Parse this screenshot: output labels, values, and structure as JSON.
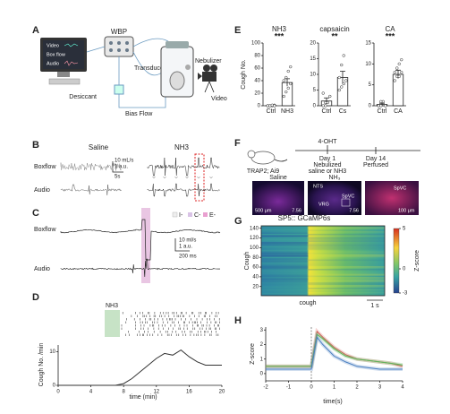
{
  "panel_labels": [
    "A",
    "B",
    "C",
    "D",
    "E",
    "F",
    "G",
    "H"
  ],
  "schematic": {
    "monitor_labels": [
      "Video",
      "Box flow",
      "Audio"
    ],
    "wbp": "WBP",
    "desiccant": "Desiccant",
    "transducer": "Transducer",
    "bias_flow": "Bias Flow",
    "nebulizer": "Nebulizer",
    "camera": "Video"
  },
  "traces_B": {
    "conditions": [
      "Saline",
      "NH3"
    ],
    "rows": [
      "Boxflow",
      "Audio"
    ],
    "scale": [
      "10 mL/s",
      "1 a.u.",
      "5s"
    ]
  },
  "traces_C": {
    "legend": [
      "I-",
      "C-",
      "E-"
    ],
    "rows": [
      "Boxflow",
      "Audio"
    ],
    "scale": [
      "10 ml/s",
      "1 a.u.",
      "200 ms"
    ]
  },
  "histology": {
    "mouse": "TRAP2; Ai9",
    "drug": "4-OHT",
    "day1": "Day 1",
    "day1_text": [
      "Nebulized",
      "saline or NH3"
    ],
    "day14": "Day 14",
    "day14_text": "Perfused",
    "images": [
      {
        "title": "Saline",
        "scale": "500 μm",
        "number": "7.56"
      },
      {
        "title": "NH₃",
        "regions": [
          "NTS",
          "SpVC",
          "VRG"
        ],
        "number": "7.56"
      },
      {
        "regions": [
          "SpVC"
        ],
        "scale": "100 μm"
      }
    ]
  },
  "chart_data": [
    {
      "type": "line",
      "annotation": "NH3",
      "x": [
        0,
        2,
        4,
        6,
        7,
        8,
        9,
        10,
        11,
        12,
        13,
        14,
        15,
        16,
        17,
        18,
        19,
        20
      ],
      "values": [
        0,
        0,
        0,
        0,
        0,
        0.5,
        2,
        4,
        6,
        8,
        9.5,
        9,
        10.5,
        8.5,
        7,
        6,
        6,
        6
      ],
      "color": "#333333",
      "xlim": [
        0,
        20
      ],
      "xticks": [
        0,
        4,
        8,
        12,
        16,
        20
      ],
      "ylim": [
        0,
        12
      ],
      "yticks": [
        0,
        10
      ],
      "xlabel": "time (min)",
      "ylabel": "Cough No. /min"
    },
    {
      "type": "bar",
      "title": "NH3",
      "annotation": "***",
      "categories": [
        "Ctrl",
        "NH3"
      ],
      "values": [
        0.3,
        37
      ],
      "errors": [
        0.3,
        6
      ],
      "points": [
        [
          0,
          0,
          0,
          1,
          0,
          0,
          1,
          0
        ],
        [
          15,
          22,
          28,
          35,
          40,
          45,
          55,
          62
        ]
      ],
      "ylim": [
        0,
        100
      ],
      "yticks": [
        0,
        20,
        40,
        60,
        80,
        100
      ],
      "ylabel": "Cough No.",
      "color": "#ffffff"
    },
    {
      "type": "bar",
      "title": "capsaicin",
      "annotation": "**",
      "categories": [
        "Ctrl",
        "Cs"
      ],
      "values": [
        1.5,
        9
      ],
      "errors": [
        1,
        2
      ],
      "points": [
        [
          0,
          0,
          1,
          3,
          4,
          1
        ],
        [
          5,
          6,
          7,
          8,
          9,
          13,
          16
        ]
      ],
      "ylim": [
        0,
        20
      ],
      "yticks": [
        0,
        5,
        10,
        15,
        20
      ],
      "color": "#ffffff"
    },
    {
      "type": "bar",
      "title": "CA",
      "annotation": "***",
      "categories": [
        "Ctrl",
        "CA"
      ],
      "values": [
        0.3,
        7.5
      ],
      "errors": [
        0.3,
        1
      ],
      "points": [
        [
          0,
          0,
          1,
          0,
          0,
          1
        ],
        [
          6,
          7,
          7,
          8,
          8,
          9,
          10,
          11
        ]
      ],
      "ylim": [
        0,
        15
      ],
      "yticks": [
        0,
        5,
        10,
        15
      ],
      "color": "#ffffff"
    },
    {
      "type": "heatmap",
      "title": "SP5:: GCaMP6s",
      "ylabel": "Cough",
      "xlabel": "cough",
      "scale": "1 s",
      "ylim": [
        1,
        145
      ],
      "yticks": [
        20,
        40,
        60,
        80,
        100,
        120,
        140
      ],
      "colorbar": {
        "lim": [
          -3,
          5
        ],
        "ticks": [
          5,
          0,
          -3
        ],
        "label": "Z-score"
      }
    },
    {
      "type": "line",
      "x": [
        -2,
        -1.5,
        -1,
        -0.5,
        0,
        0.1,
        0.25,
        0.5,
        1,
        1.5,
        2,
        2.5,
        3,
        3.5,
        4
      ],
      "series": [
        {
          "color": "#d9534f",
          "values": [
            0.5,
            0.5,
            0.5,
            0.5,
            0.5,
            1.5,
            2.9,
            2.5,
            1.8,
            1.3,
            1.0,
            0.9,
            0.8,
            0.7,
            0.5
          ]
        },
        {
          "color": "#5cb85c",
          "values": [
            0.5,
            0.5,
            0.5,
            0.5,
            0.5,
            1.4,
            2.7,
            2.4,
            1.7,
            1.2,
            1.0,
            0.9,
            0.8,
            0.7,
            0.6
          ]
        },
        {
          "color": "#4a7fc1",
          "values": [
            0.3,
            0.3,
            0.3,
            0.3,
            0.3,
            1.2,
            2.5,
            2.0,
            1.2,
            0.8,
            0.5,
            0.4,
            0.3,
            0.3,
            0.3
          ]
        }
      ],
      "xlim": [
        -2,
        4
      ],
      "xticks": [
        -2,
        -1,
        0,
        1,
        2,
        3,
        4
      ],
      "ylim": [
        -0.5,
        3.2
      ],
      "yticks": [
        0,
        1,
        2,
        3
      ],
      "xlabel": "time(s)",
      "ylabel": "Z-score"
    }
  ]
}
